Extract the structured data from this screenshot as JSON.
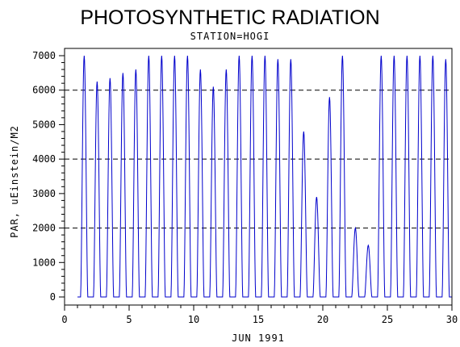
{
  "chart_data": {
    "type": "line",
    "title": "PHOTOSYNTHETIC RADIATION",
    "subtitle": "STATION=HOGI",
    "xlabel": "JUN 1991",
    "ylabel": "PAR, uEinstein/M2",
    "xlim": [
      0,
      30
    ],
    "ylim": [
      0,
      7000
    ],
    "xticks": [
      0,
      5,
      10,
      15,
      20,
      25,
      30
    ],
    "yticks": [
      0,
      1000,
      2000,
      3000,
      4000,
      5000,
      6000,
      7000
    ],
    "grid_lines_y": [
      2000,
      4000,
      6000
    ],
    "line_color": "#0000cc",
    "series": [
      {
        "daily_peaks": [
          {
            "day": 1,
            "peak": 7000
          },
          {
            "day": 2,
            "peak": 6250
          },
          {
            "day": 3,
            "peak": 6350
          },
          {
            "day": 4,
            "peak": 6500
          },
          {
            "day": 5,
            "peak": 6600
          },
          {
            "day": 6,
            "peak": 7000
          },
          {
            "day": 7,
            "peak": 7000
          },
          {
            "day": 8,
            "peak": 7000
          },
          {
            "day": 9,
            "peak": 7000
          },
          {
            "day": 10,
            "peak": 6600
          },
          {
            "day": 11,
            "peak": 6100
          },
          {
            "day": 12,
            "peak": 6600
          },
          {
            "day": 13,
            "peak": 7000
          },
          {
            "day": 14,
            "peak": 7000
          },
          {
            "day": 15,
            "peak": 7000
          },
          {
            "day": 16,
            "peak": 6900
          },
          {
            "day": 17,
            "peak": 6900
          },
          {
            "day": 18,
            "peak": 4800
          },
          {
            "day": 19,
            "peak": 2900
          },
          {
            "day": 20,
            "peak": 5800
          },
          {
            "day": 21,
            "peak": 7000
          },
          {
            "day": 22,
            "peak": 2000
          },
          {
            "day": 23,
            "peak": 1500
          },
          {
            "day": 24,
            "peak": 7000
          },
          {
            "day": 25,
            "peak": 7000
          },
          {
            "day": 26,
            "peak": 7000
          },
          {
            "day": 27,
            "peak": 7000
          },
          {
            "day": 28,
            "peak": 7000
          },
          {
            "day": 29,
            "peak": 6900
          }
        ]
      }
    ]
  }
}
